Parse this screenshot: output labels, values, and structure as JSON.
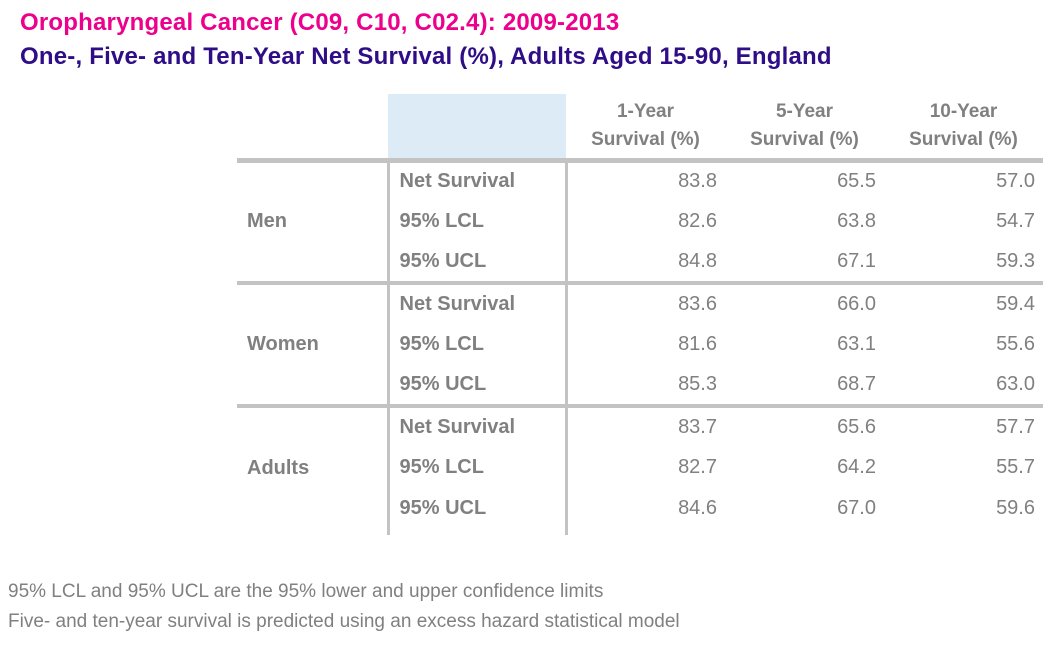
{
  "page": {
    "title": "Oropharyngeal Cancer (C09, C10, C02.4): 2009-2013",
    "subtitle": "One-, Five- and Ten-Year Net Survival (%), Adults Aged 15-90, England"
  },
  "colors": {
    "title_pink": "#ec008c",
    "subtitle_navy": "#2e0d87",
    "table_text_gray": "#808080",
    "line_gray": "#c3c3c3",
    "header_cell_blue": "#ddebf7"
  },
  "chart_data": {
    "type": "table",
    "title": "Oropharyngeal Cancer (C09, C10, C02.4): 2009-2013",
    "subtitle": "One-, Five- and Ten-Year Net Survival (%), Adults Aged 15-90, England",
    "columns": [
      {
        "label": "1-Year Survival (%)",
        "line1": "1-Year",
        "line2": "Survival (%)"
      },
      {
        "label": "5-Year Survival (%)",
        "line1": "5-Year",
        "line2": "Survival (%)"
      },
      {
        "label": "10-Year Survival (%)",
        "line1": "10-Year",
        "line2": "Survival (%)"
      }
    ],
    "row_groups": [
      {
        "label": "Men",
        "rows": [
          {
            "measure": "Net Survival",
            "values": [
              "83.8",
              "65.5",
              "57.0"
            ]
          },
          {
            "measure": "95% LCL",
            "values": [
              "82.6",
              "63.8",
              "54.7"
            ]
          },
          {
            "measure": "95% UCL",
            "values": [
              "84.8",
              "67.1",
              "59.3"
            ]
          }
        ]
      },
      {
        "label": "Women",
        "rows": [
          {
            "measure": "Net Survival",
            "values": [
              "83.6",
              "66.0",
              "59.4"
            ]
          },
          {
            "measure": "95% LCL",
            "values": [
              "81.6",
              "63.1",
              "55.6"
            ]
          },
          {
            "measure": "95% UCL",
            "values": [
              "85.3",
              "68.7",
              "63.0"
            ]
          }
        ]
      },
      {
        "label": "Adults",
        "rows": [
          {
            "measure": "Net Survival",
            "values": [
              "83.7",
              "65.6",
              "57.7"
            ]
          },
          {
            "measure": "95% LCL",
            "values": [
              "82.7",
              "64.2",
              "55.7"
            ]
          },
          {
            "measure": "95% UCL",
            "values": [
              "84.6",
              "67.0",
              "59.6"
            ]
          }
        ]
      }
    ]
  },
  "footnotes": {
    "line1": "95% LCL and 95% UCL are the 95% lower and upper confidence limits",
    "line2": "Five- and ten-year survival is predicted using an excess hazard statistical model"
  }
}
